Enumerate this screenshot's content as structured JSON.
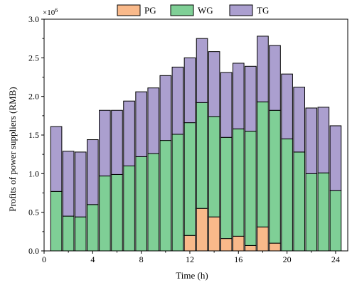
{
  "chart_data": {
    "type": "bar",
    "stacked": true,
    "xlabel": "Time (h)",
    "ylabel": "Profits of power suppliers (RMB)",
    "y_multiplier": "×10",
    "y_multiplier_exp": "6",
    "xlim": [
      0,
      25
    ],
    "ylim": [
      0,
      3.0
    ],
    "x_ticks": [
      0,
      4,
      8,
      12,
      16,
      20,
      24
    ],
    "y_ticks": [
      0.0,
      0.5,
      1.0,
      1.5,
      2.0,
      2.5,
      3.0
    ],
    "y_tick_labels": [
      "0.0",
      "0.5",
      "1.0",
      "1.5",
      "2.0",
      "2.5",
      "3.0"
    ],
    "legend_position": "top",
    "grid": false,
    "x": [
      1,
      2,
      3,
      4,
      5,
      6,
      7,
      8,
      9,
      10,
      11,
      12,
      13,
      14,
      15,
      16,
      17,
      18,
      19,
      20,
      21,
      22,
      23,
      24
    ],
    "series": [
      {
        "name": "PG",
        "color": "#f9b98a",
        "values": [
          0,
          0,
          0,
          0,
          0,
          0,
          0,
          0,
          0,
          0,
          0,
          0.2,
          0.55,
          0.44,
          0.16,
          0.19,
          0.07,
          0.31,
          0.1,
          0,
          0,
          0,
          0,
          0
        ]
      },
      {
        "name": "WG",
        "color": "#7fcf96",
        "values": [
          0.77,
          0.45,
          0.44,
          0.6,
          0.97,
          0.99,
          1.1,
          1.22,
          1.26,
          1.43,
          1.51,
          1.46,
          1.37,
          1.3,
          1.31,
          1.39,
          1.48,
          1.62,
          1.72,
          1.45,
          1.28,
          1.0,
          1.01,
          0.78
        ]
      },
      {
        "name": "TG",
        "color": "#ab9fcf",
        "values": [
          0.84,
          0.84,
          0.84,
          0.84,
          0.85,
          0.83,
          0.84,
          0.84,
          0.85,
          0.84,
          0.87,
          0.84,
          0.83,
          0.84,
          0.84,
          0.85,
          0.84,
          0.85,
          0.84,
          0.84,
          0.84,
          0.85,
          0.85,
          0.84
        ]
      }
    ]
  }
}
